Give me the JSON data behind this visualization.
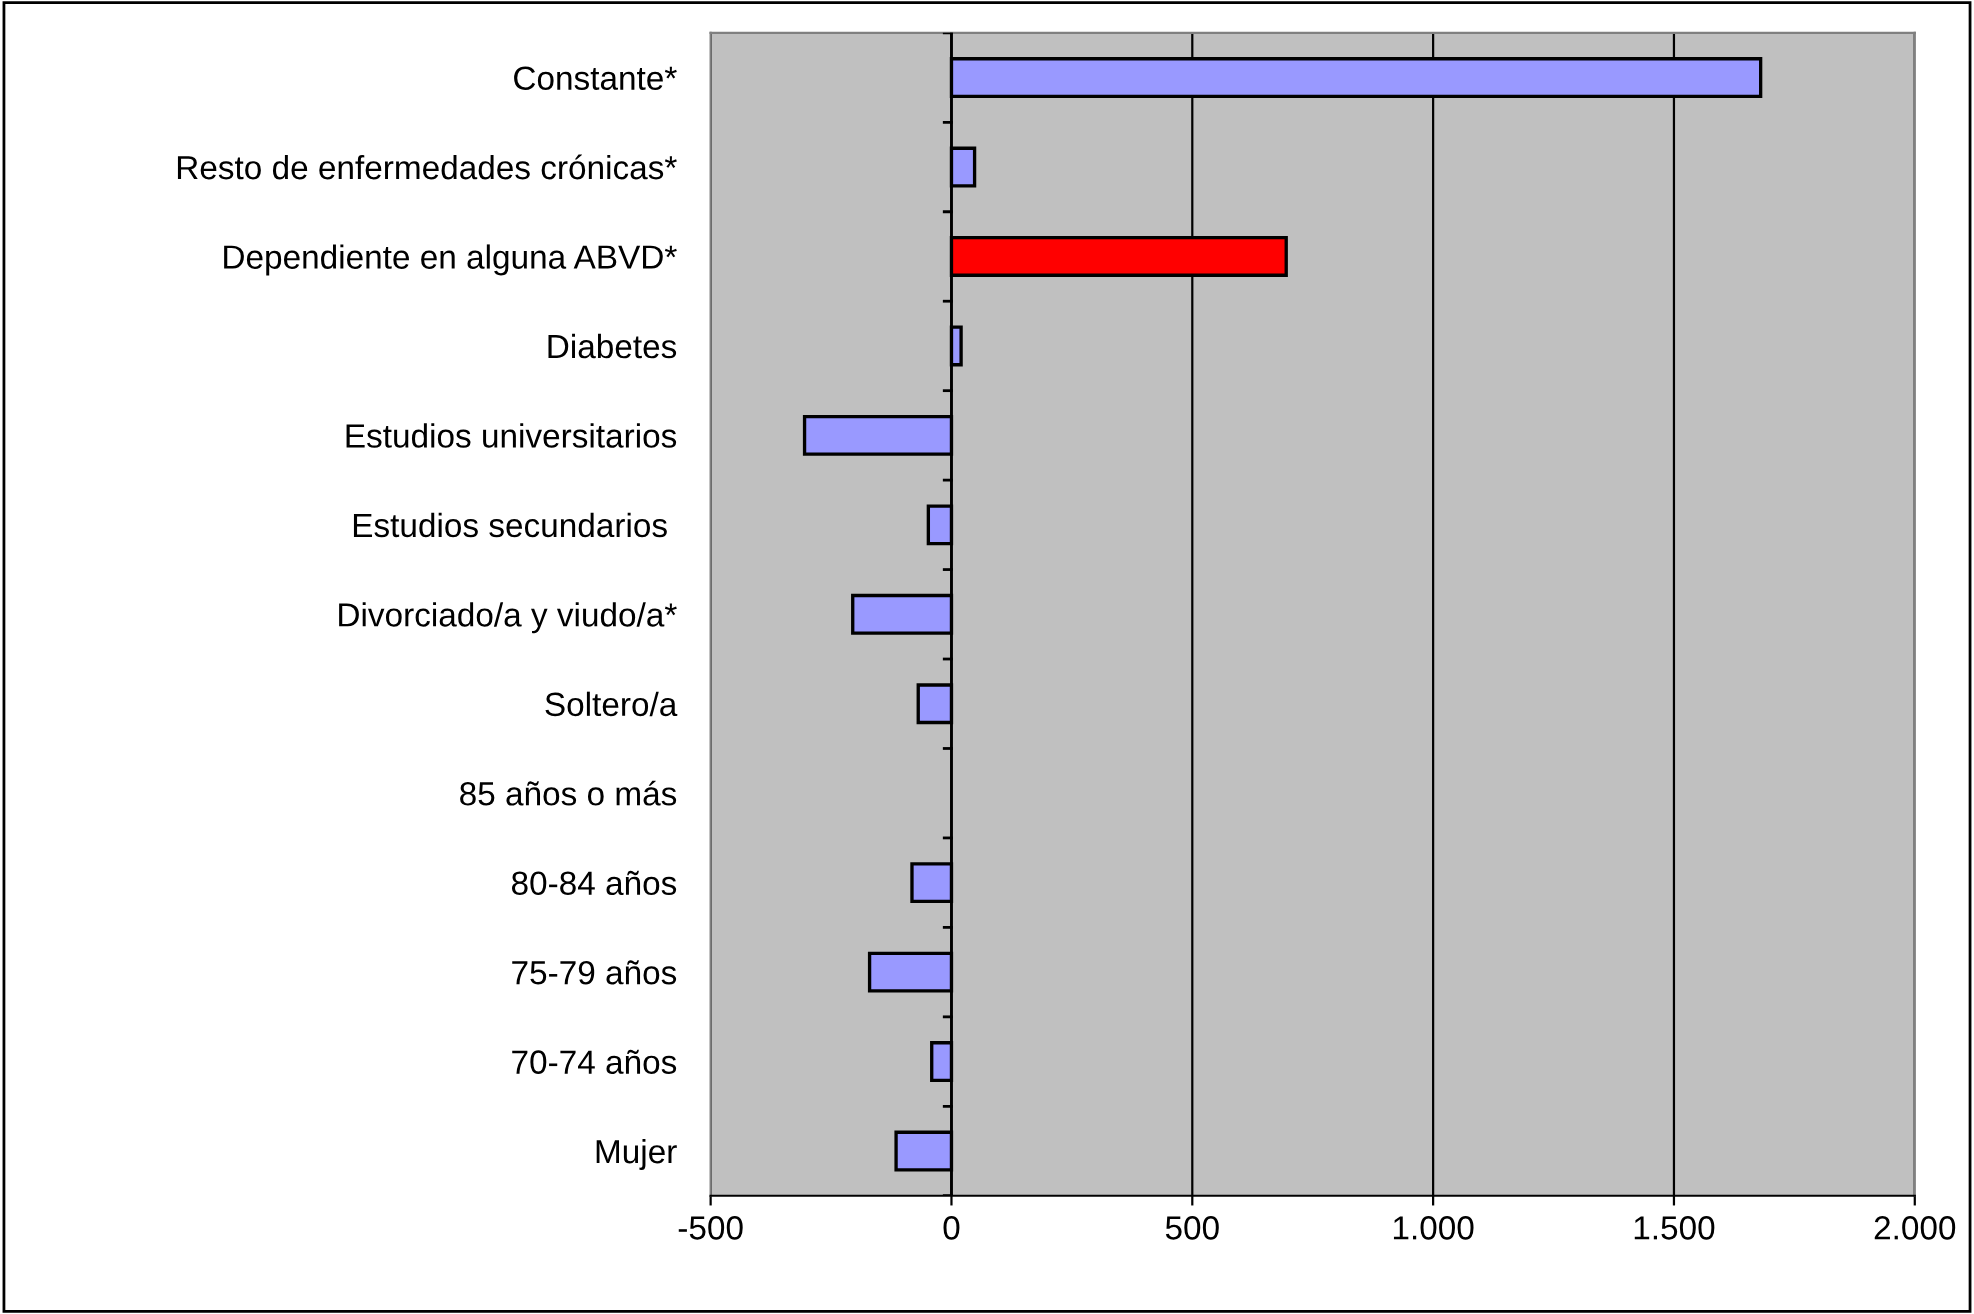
{
  "chart_data": {
    "type": "bar",
    "orientation": "horizontal",
    "categories": [
      "Constante*",
      "Resto de enfermedades crónicas*",
      "Dependiente en alguna ABVD*",
      "Diabetes",
      "Estudios universitarios",
      "Estudios secundarios ",
      "Divorciado/a y viudo/a*",
      "Soltero/a",
      "85 años o más",
      "80-84 años",
      "75-79 años",
      "70-74 años",
      "Mujer"
    ],
    "values": [
      1680,
      48,
      695,
      20,
      -305,
      -48,
      -205,
      -69,
      null,
      -82,
      -170,
      -41,
      -115
    ],
    "colors": [
      "#9999ff",
      "#9999ff",
      "#ff0000",
      "#9999ff",
      "#9999ff",
      "#9999ff",
      "#9999ff",
      "#9999ff",
      "#9999ff",
      "#9999ff",
      "#9999ff",
      "#9999ff",
      "#9999ff"
    ],
    "xlim": [
      -500,
      2000
    ],
    "xticks": [
      -500,
      0,
      500,
      {
        "value": 1000,
        "label": "1.000"
      },
      {
        "value": 1500,
        "label": "1.500"
      },
      {
        "value": 2000,
        "label": "2.000"
      }
    ],
    "grid": "x",
    "legend": false
  }
}
